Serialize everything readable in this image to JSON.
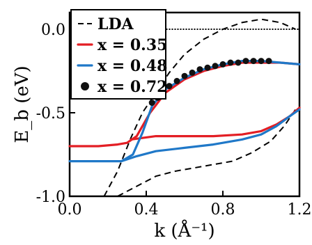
{
  "chart_data": {
    "type": "line",
    "xlabel": "k (Å⁻¹)",
    "ylabel": "E_b (eV)",
    "xlim": [
      0.0,
      1.2
    ],
    "ylim": [
      -1.0,
      0.1
    ],
    "xticks": [
      "0.0",
      "0.4",
      "0.8",
      "1.2"
    ],
    "yticks": [
      "0.0",
      "-0.5",
      "-1.0"
    ],
    "legend_position": "top-left",
    "series": [
      {
        "name": "LDA",
        "style": "dashed",
        "color": "#000000",
        "segments": [
          [
            [
              0.18,
              -1.0
            ],
            [
              0.25,
              -0.85
            ],
            [
              0.32,
              -0.65
            ],
            [
              0.38,
              -0.5
            ],
            [
              0.45,
              -0.38
            ],
            [
              0.52,
              -0.26
            ],
            [
              0.6,
              -0.15
            ],
            [
              0.7,
              -0.06
            ],
            [
              0.8,
              0.0
            ],
            [
              0.9,
              0.04
            ],
            [
              1.0,
              0.06
            ],
            [
              1.1,
              0.04
            ],
            [
              1.18,
              0.0
            ]
          ],
          [
            [
              0.25,
              -1.0
            ],
            [
              0.35,
              -0.94
            ],
            [
              0.45,
              -0.88
            ],
            [
              0.55,
              -0.85
            ],
            [
              0.7,
              -0.82
            ],
            [
              0.85,
              -0.79
            ],
            [
              0.95,
              -0.74
            ],
            [
              1.05,
              -0.67
            ],
            [
              1.12,
              -0.58
            ],
            [
              1.18,
              -0.48
            ]
          ]
        ]
      },
      {
        "name": "x = 0.35",
        "style": "solid",
        "color": "#e31e24",
        "segments": [
          [
            [
              0.0,
              -0.7
            ],
            [
              0.15,
              -0.7
            ],
            [
              0.25,
              -0.69
            ],
            [
              0.3,
              -0.68
            ],
            [
              0.35,
              -0.64
            ],
            [
              0.42,
              -0.5
            ],
            [
              0.5,
              -0.38
            ],
            [
              0.6,
              -0.3
            ],
            [
              0.7,
              -0.25
            ],
            [
              0.8,
              -0.22
            ],
            [
              0.9,
              -0.2
            ],
            [
              1.0,
              -0.2
            ],
            [
              1.1,
              -0.2
            ],
            [
              1.2,
              -0.21
            ]
          ],
          [
            [
              0.32,
              -0.66
            ],
            [
              0.45,
              -0.64
            ],
            [
              0.6,
              -0.64
            ],
            [
              0.75,
              -0.64
            ],
            [
              0.9,
              -0.63
            ],
            [
              1.0,
              -0.61
            ],
            [
              1.08,
              -0.57
            ],
            [
              1.15,
              -0.52
            ],
            [
              1.2,
              -0.47
            ]
          ]
        ]
      },
      {
        "name": "x = 0.48",
        "style": "solid",
        "color": "#1f78c8",
        "segments": [
          [
            [
              0.0,
              -0.79
            ],
            [
              0.15,
              -0.79
            ],
            [
              0.27,
              -0.79
            ],
            [
              0.33,
              -0.75
            ],
            [
              0.38,
              -0.62
            ],
            [
              0.43,
              -0.46
            ],
            [
              0.5,
              -0.36
            ],
            [
              0.6,
              -0.29
            ],
            [
              0.7,
              -0.24
            ],
            [
              0.8,
              -0.21
            ],
            [
              0.9,
              -0.19
            ],
            [
              1.0,
              -0.19
            ],
            [
              1.1,
              -0.2
            ],
            [
              1.2,
              -0.21
            ]
          ],
          [
            [
              0.27,
              -0.79
            ],
            [
              0.35,
              -0.76
            ],
            [
              0.45,
              -0.73
            ],
            [
              0.6,
              -0.71
            ],
            [
              0.75,
              -0.69
            ],
            [
              0.9,
              -0.66
            ],
            [
              1.0,
              -0.63
            ],
            [
              1.08,
              -0.58
            ],
            [
              1.15,
              -0.52
            ],
            [
              1.2,
              -0.48
            ]
          ]
        ]
      },
      {
        "name": "x = 0.72",
        "style": "dots",
        "color": "#111111",
        "points": [
          [
            0.43,
            -0.44
          ],
          [
            0.46,
            -0.41
          ],
          [
            0.49,
            -0.37
          ],
          [
            0.52,
            -0.34
          ],
          [
            0.56,
            -0.31
          ],
          [
            0.6,
            -0.28
          ],
          [
            0.64,
            -0.26
          ],
          [
            0.68,
            -0.24
          ],
          [
            0.72,
            -0.23
          ],
          [
            0.76,
            -0.22
          ],
          [
            0.8,
            -0.21
          ],
          [
            0.84,
            -0.2
          ],
          [
            0.88,
            -0.2
          ],
          [
            0.92,
            -0.19
          ],
          [
            0.96,
            -0.19
          ],
          [
            1.0,
            -0.19
          ],
          [
            1.04,
            -0.19
          ]
        ]
      },
      {
        "name": "",
        "style": "dotted",
        "color": "#000000",
        "segments": [
          [
            [
              0.3,
              0.0
            ],
            [
              1.2,
              0.0
            ]
          ]
        ]
      }
    ]
  }
}
